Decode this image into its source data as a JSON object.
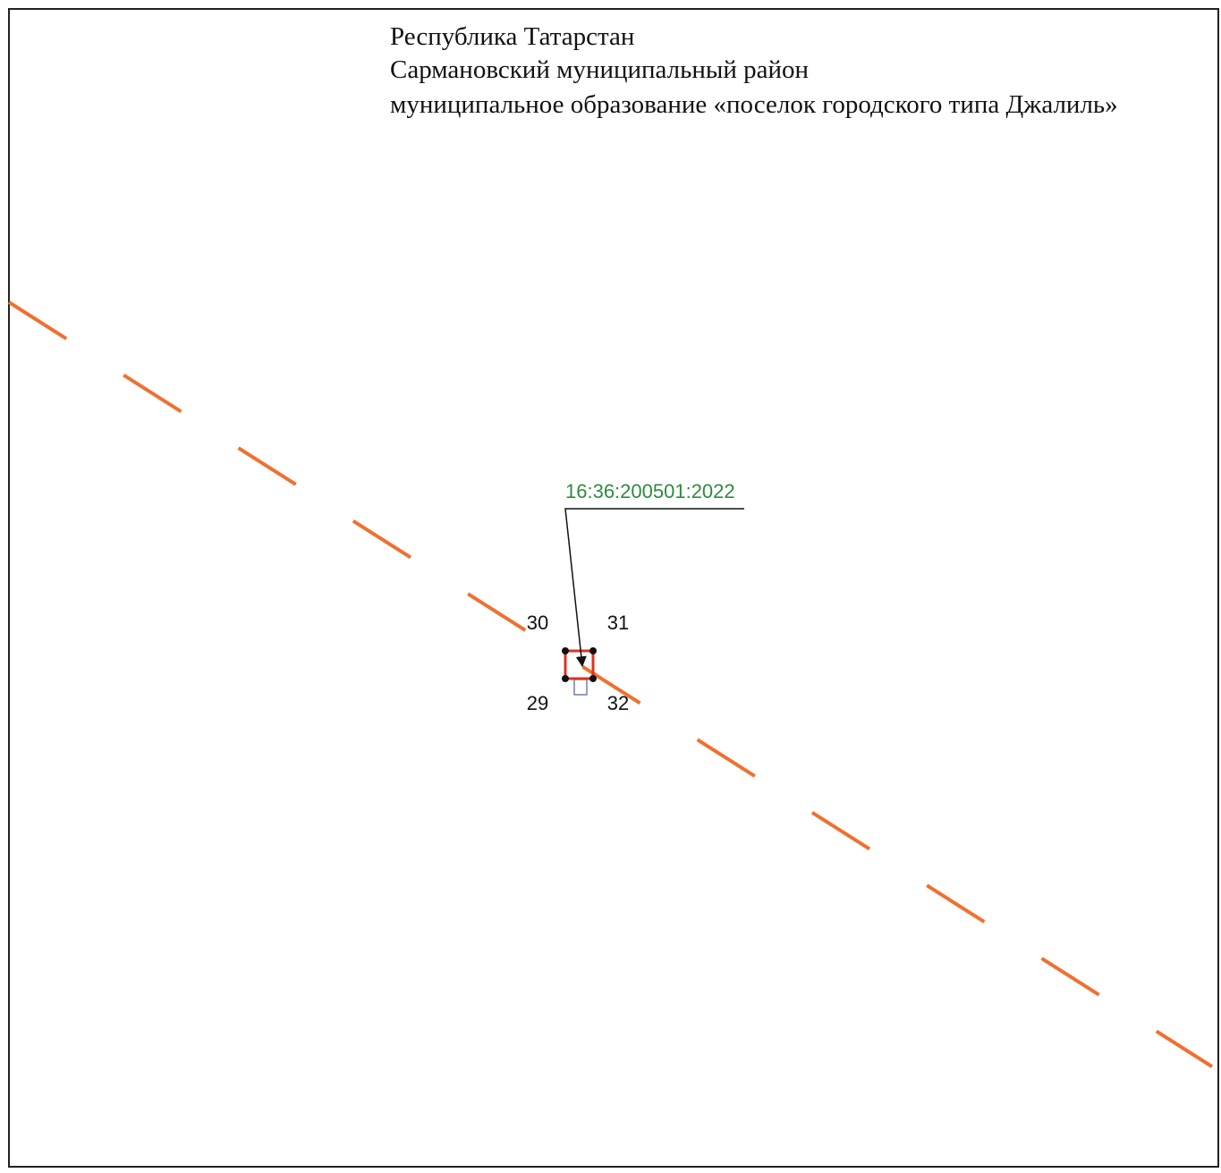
{
  "header": {
    "lines": [
      "Республика Татарстан",
      "Сармановский муниципальный район",
      "муниципальное образование «поселок городского типа Джалиль»"
    ]
  },
  "parcel": {
    "label": "16:36:200501:2022"
  },
  "points": [
    "30",
    "31",
    "29",
    "32"
  ]
}
